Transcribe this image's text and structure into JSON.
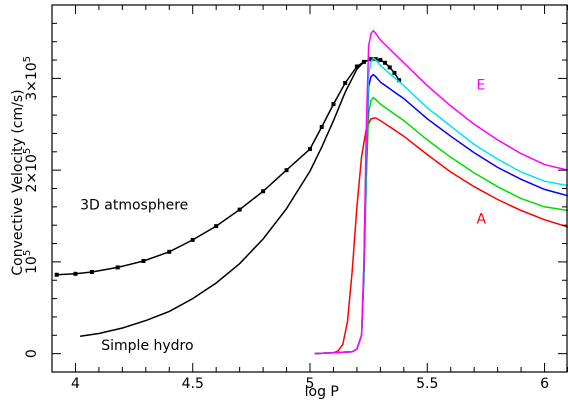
{
  "chart_data": {
    "type": "line",
    "xlabel": "log P",
    "ylabel": "Convective Velocity (cm/s)",
    "xlim": [
      3.9,
      6.1
    ],
    "ylim": [
      -20000,
      380000
    ],
    "x_ticks": [
      {
        "value": 4,
        "label": "4"
      },
      {
        "value": 4.5,
        "label": "4.5"
      },
      {
        "value": 5,
        "label": "5"
      },
      {
        "value": 5.5,
        "label": "5.5"
      },
      {
        "value": 6,
        "label": "6"
      }
    ],
    "y_ticks": [
      {
        "value": 0,
        "base": "0",
        "exp": ""
      },
      {
        "value": 100000,
        "base": "10",
        "exp": "5"
      },
      {
        "value": 200000,
        "base": "2×10",
        "exp": "5"
      },
      {
        "value": 300000,
        "base": "3×10",
        "exp": "5"
      }
    ],
    "grid": false,
    "annotations": [
      {
        "text": "3D atmosphere",
        "x": 4.02,
        "y": 157000,
        "color": "#000000",
        "anchor": "start"
      },
      {
        "text": "Simple hydro",
        "x": 4.11,
        "y": 4000,
        "color": "#000000",
        "anchor": "start"
      },
      {
        "text": "E",
        "x": 5.71,
        "y": 288000,
        "color": "#ff00ff",
        "anchor": "start"
      },
      {
        "text": "A",
        "x": 5.71,
        "y": 142000,
        "color": "#ff0000",
        "anchor": "start"
      }
    ],
    "series": [
      {
        "color": "#000000",
        "markers": true,
        "x": [
          3.92,
          4.0,
          4.07,
          4.18,
          4.29,
          4.4,
          4.5,
          4.6,
          4.7,
          4.8,
          4.9,
          5.0,
          5.05,
          5.1,
          5.15,
          5.2,
          5.23,
          5.26,
          5.28,
          5.3,
          5.32,
          5.34,
          5.36,
          5.38
        ],
        "y": [
          86000,
          87000,
          89000,
          94000,
          101000,
          111000,
          124000,
          139000,
          157000,
          177000,
          200000,
          223000,
          247000,
          272000,
          295000,
          313000,
          318000,
          321000,
          321000,
          320000,
          317000,
          312000,
          306000,
          298000
        ]
      },
      {
        "color": "#000000",
        "markers": false,
        "x": [
          4.02,
          4.1,
          4.2,
          4.3,
          4.4,
          4.5,
          4.6,
          4.7,
          4.8,
          4.9,
          5.0,
          5.05,
          5.1,
          5.15,
          5.2,
          5.23,
          5.26,
          5.28
        ],
        "y": [
          19000,
          22000,
          28000,
          36000,
          46000,
          60000,
          77000,
          98000,
          125000,
          158000,
          199000,
          225000,
          254000,
          285000,
          310000,
          318000,
          321000,
          320000
        ]
      },
      {
        "color": "#ff0000",
        "markers": false,
        "x": [
          5.02,
          5.1,
          5.12,
          5.14,
          5.16,
          5.18,
          5.2,
          5.22,
          5.24,
          5.26,
          5.28,
          5.3,
          5.4,
          5.5,
          5.6,
          5.7,
          5.8,
          5.9,
          6.0,
          6.1
        ],
        "y": [
          0,
          1000,
          3000,
          10000,
          35000,
          90000,
          160000,
          215000,
          245000,
          256000,
          257000,
          254000,
          237000,
          217000,
          198000,
          182000,
          168000,
          156000,
          146000,
          138000
        ]
      },
      {
        "color": "#00dd00",
        "markers": false,
        "x": [
          5.02,
          5.18,
          5.2,
          5.22,
          5.23,
          5.24,
          5.25,
          5.26,
          5.27,
          5.28,
          5.3,
          5.4,
          5.5,
          5.6,
          5.7,
          5.8,
          5.9,
          6.0,
          6.1
        ],
        "y": [
          0,
          2000,
          5000,
          20000,
          80000,
          190000,
          262000,
          276000,
          279000,
          277000,
          272000,
          254000,
          233000,
          214000,
          197000,
          182000,
          169000,
          160000,
          156000
        ]
      },
      {
        "color": "#0000ff",
        "markers": false,
        "x": [
          5.02,
          5.18,
          5.2,
          5.22,
          5.23,
          5.24,
          5.25,
          5.26,
          5.27,
          5.28,
          5.3,
          5.4,
          5.5,
          5.6,
          5.7,
          5.8,
          5.9,
          6.0,
          6.1
        ],
        "y": [
          0,
          2000,
          5000,
          20000,
          90000,
          215000,
          291000,
          302000,
          304000,
          302000,
          296000,
          278000,
          256000,
          237000,
          219000,
          203000,
          190000,
          179000,
          172000
        ]
      },
      {
        "color": "#00e5ee",
        "markers": false,
        "x": [
          5.02,
          5.18,
          5.2,
          5.22,
          5.23,
          5.24,
          5.25,
          5.26,
          5.27,
          5.28,
          5.3,
          5.4,
          5.5,
          5.6,
          5.7,
          5.8,
          5.9,
          6.0,
          6.1
        ],
        "y": [
          0,
          2000,
          5000,
          20000,
          95000,
          225000,
          305000,
          318000,
          322000,
          320000,
          314000,
          292000,
          268000,
          248000,
          228000,
          212000,
          198000,
          188000,
          183000
        ]
      },
      {
        "color": "#ff00ff",
        "markers": false,
        "x": [
          5.02,
          5.18,
          5.2,
          5.22,
          5.23,
          5.24,
          5.25,
          5.26,
          5.27,
          5.28,
          5.3,
          5.4,
          5.5,
          5.6,
          5.7,
          5.8,
          5.9,
          6.0,
          6.1
        ],
        "y": [
          0,
          2000,
          5000,
          20000,
          100000,
          245000,
          335000,
          349000,
          352000,
          349000,
          342000,
          317000,
          292000,
          270000,
          250000,
          233000,
          218000,
          206000,
          200000
        ]
      }
    ]
  }
}
